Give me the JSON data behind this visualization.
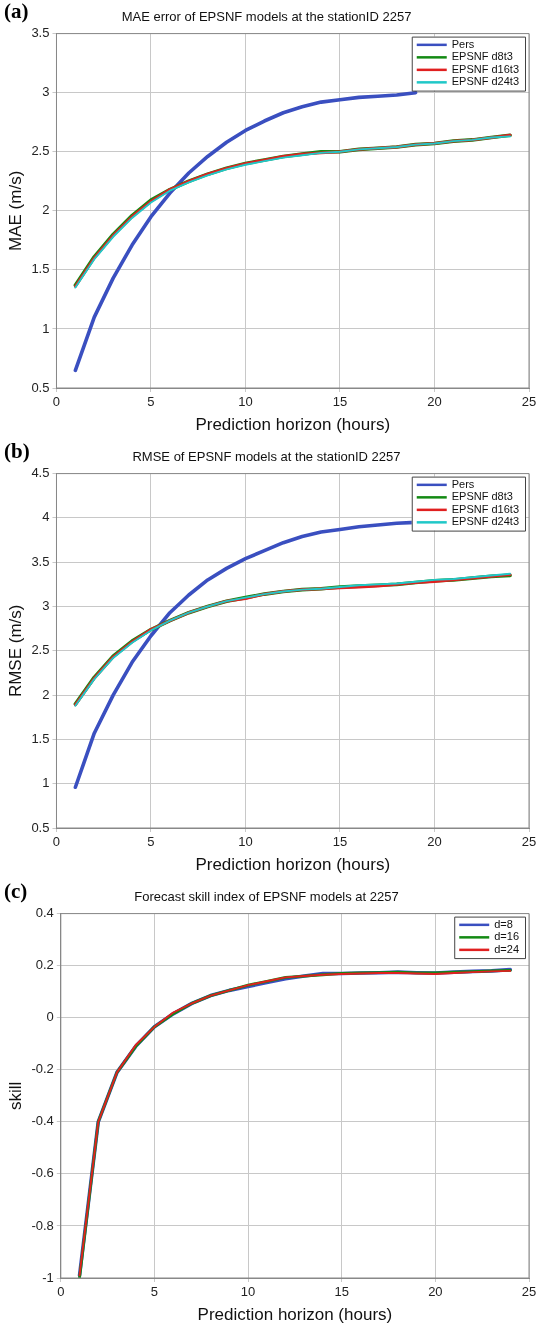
{
  "chart_data": [
    {
      "type": "line",
      "title": "MAE error of EPSNF models at the stationID 2257",
      "xlabel": "Prediction horizon (hours)",
      "ylabel": "MAE (m/s)",
      "annotations": [
        "(a)"
      ],
      "x": [
        1,
        2,
        3,
        4,
        5,
        6,
        7,
        8,
        9,
        10,
        11,
        12,
        13,
        14,
        15,
        16,
        17,
        18,
        19,
        20,
        21,
        22,
        23,
        24
      ],
      "xlim": [
        0,
        25
      ],
      "xticks": [
        0,
        5,
        10,
        15,
        20,
        25
      ],
      "ylim": [
        0.5,
        3.5
      ],
      "yticks": [
        0.5,
        1,
        1.5,
        2,
        2.5,
        3,
        3.5
      ],
      "grid": true,
      "legend": "top right",
      "line_style": "solid",
      "marker": "none",
      "series": [
        {
          "name": "Pers",
          "color": "#3a4fc0",
          "values": [
            0.65,
            1.1,
            1.43,
            1.71,
            1.95,
            2.15,
            2.32,
            2.46,
            2.58,
            2.68,
            2.76,
            2.83,
            2.88,
            2.92,
            2.94,
            2.96,
            2.97,
            2.98,
            3.0,
            null,
            null,
            null,
            null,
            null
          ]
        },
        {
          "name": "EPSNF d8t3",
          "color": "#138a13",
          "values": [
            1.37,
            1.61,
            1.8,
            1.96,
            2.09,
            2.18,
            2.25,
            2.31,
            2.36,
            2.4,
            2.43,
            2.46,
            2.48,
            2.5,
            2.5,
            2.52,
            2.53,
            2.54,
            2.56,
            2.57,
            2.59,
            2.6,
            2.62,
            2.64
          ]
        },
        {
          "name": "EPSNF d16t3",
          "color": "#e02020",
          "values": [
            1.36,
            1.6,
            1.79,
            1.95,
            2.08,
            2.18,
            2.25,
            2.31,
            2.36,
            2.4,
            2.43,
            2.46,
            2.48,
            2.49,
            2.5,
            2.52,
            2.53,
            2.54,
            2.56,
            2.57,
            2.59,
            2.6,
            2.62,
            2.64
          ]
        },
        {
          "name": "EPSNF d24t3",
          "color": "#20c8c8",
          "values": [
            1.35,
            1.59,
            1.78,
            1.94,
            2.07,
            2.17,
            2.24,
            2.3,
            2.35,
            2.39,
            2.42,
            2.45,
            2.47,
            2.49,
            2.5,
            2.52,
            2.53,
            2.54,
            2.56,
            2.57,
            2.59,
            2.6,
            2.62,
            2.63
          ]
        }
      ]
    },
    {
      "type": "line",
      "title": "RMSE of EPSNF models at the stationID 2257",
      "xlabel": "Prediction horizon (hours)",
      "ylabel": "RMSE (m/s)",
      "annotations": [
        "(b)"
      ],
      "x": [
        1,
        2,
        3,
        4,
        5,
        6,
        7,
        8,
        9,
        10,
        11,
        12,
        13,
        14,
        15,
        16,
        17,
        18,
        19,
        20,
        21,
        22,
        23,
        24
      ],
      "xlim": [
        0,
        25
      ],
      "xticks": [
        0,
        5,
        10,
        15,
        20,
        25
      ],
      "ylim": [
        0.5,
        4.5
      ],
      "yticks": [
        0.5,
        1,
        1.5,
        2,
        2.5,
        3,
        3.5,
        4,
        4.5
      ],
      "grid": true,
      "legend": "top right",
      "line_style": "solid",
      "marker": "none",
      "series": [
        {
          "name": "Pers",
          "color": "#3a4fc0",
          "values": [
            0.96,
            1.57,
            2.0,
            2.37,
            2.67,
            2.93,
            3.13,
            3.3,
            3.43,
            3.54,
            3.63,
            3.72,
            3.79,
            3.84,
            3.87,
            3.9,
            3.92,
            3.94,
            3.95,
            null,
            null,
            null,
            null,
            null
          ]
        },
        {
          "name": "EPSNF d8t3",
          "color": "#138a13",
          "values": [
            1.9,
            2.2,
            2.44,
            2.61,
            2.74,
            2.84,
            2.93,
            3.0,
            3.06,
            3.1,
            3.14,
            3.17,
            3.19,
            3.2,
            3.22,
            3.23,
            3.24,
            3.25,
            3.27,
            3.29,
            3.3,
            3.32,
            3.34,
            3.35
          ]
        },
        {
          "name": "EPSNF d16t3",
          "color": "#e02020",
          "values": [
            1.89,
            2.19,
            2.43,
            2.6,
            2.74,
            2.84,
            2.93,
            3.0,
            3.06,
            3.09,
            3.14,
            3.17,
            3.19,
            3.2,
            3.21,
            3.22,
            3.23,
            3.25,
            3.27,
            3.28,
            3.3,
            3.32,
            3.34,
            3.36
          ]
        },
        {
          "name": "EPSNF d24t3",
          "color": "#20c8c8",
          "values": [
            1.88,
            2.18,
            2.42,
            2.59,
            2.73,
            2.84,
            2.93,
            3.0,
            3.06,
            3.1,
            3.14,
            3.17,
            3.19,
            3.2,
            3.22,
            3.24,
            3.25,
            3.26,
            3.28,
            3.3,
            3.31,
            3.33,
            3.35,
            3.37
          ]
        }
      ]
    },
    {
      "type": "line",
      "title": "Forecast skill index of EPSNF models at 2257",
      "xlabel": "Prediction horizon (hours)",
      "ylabel": "skill",
      "annotations": [
        "(c)"
      ],
      "x": [
        1,
        2,
        3,
        4,
        5,
        6,
        7,
        8,
        9,
        10,
        11,
        12,
        13,
        14,
        15,
        16,
        17,
        18,
        19,
        20,
        21,
        22,
        23,
        24
      ],
      "xlim": [
        0,
        25
      ],
      "xticks": [
        0,
        5,
        10,
        15,
        20,
        25
      ],
      "ylim": [
        -1,
        0.4
      ],
      "yticks": [
        -1,
        -0.8,
        -0.6,
        -0.4,
        -0.2,
        0,
        0.2,
        0.4
      ],
      "grid": true,
      "legend": "top right",
      "line_style": "solid",
      "marker": "none",
      "series": [
        {
          "name": "d=8",
          "color": "#3a4fc0",
          "values": [
            -0.99,
            -0.4,
            -0.21,
            -0.11,
            -0.035,
            0.015,
            0.055,
            0.085,
            0.105,
            0.12,
            0.135,
            0.15,
            0.16,
            0.17,
            0.17,
            0.172,
            0.173,
            0.175,
            0.173,
            0.172,
            0.175,
            0.178,
            0.18,
            0.185
          ]
        },
        {
          "name": "d=16",
          "color": "#138a13",
          "values": [
            -1.0,
            -0.4,
            -0.21,
            -0.11,
            -0.035,
            0.015,
            0.055,
            0.085,
            0.105,
            0.125,
            0.14,
            0.155,
            0.16,
            0.165,
            0.17,
            0.172,
            0.173,
            0.175,
            0.172,
            0.172,
            0.175,
            0.177,
            0.18,
            0.182
          ]
        },
        {
          "name": "d=24",
          "color": "#e02020",
          "values": [
            -0.99,
            -0.4,
            -0.21,
            -0.105,
            -0.035,
            0.02,
            0.055,
            0.085,
            0.105,
            0.125,
            0.14,
            0.155,
            0.16,
            0.165,
            0.168,
            0.17,
            0.172,
            0.172,
            0.17,
            0.168,
            0.172,
            0.175,
            0.178,
            0.18
          ]
        }
      ]
    }
  ]
}
